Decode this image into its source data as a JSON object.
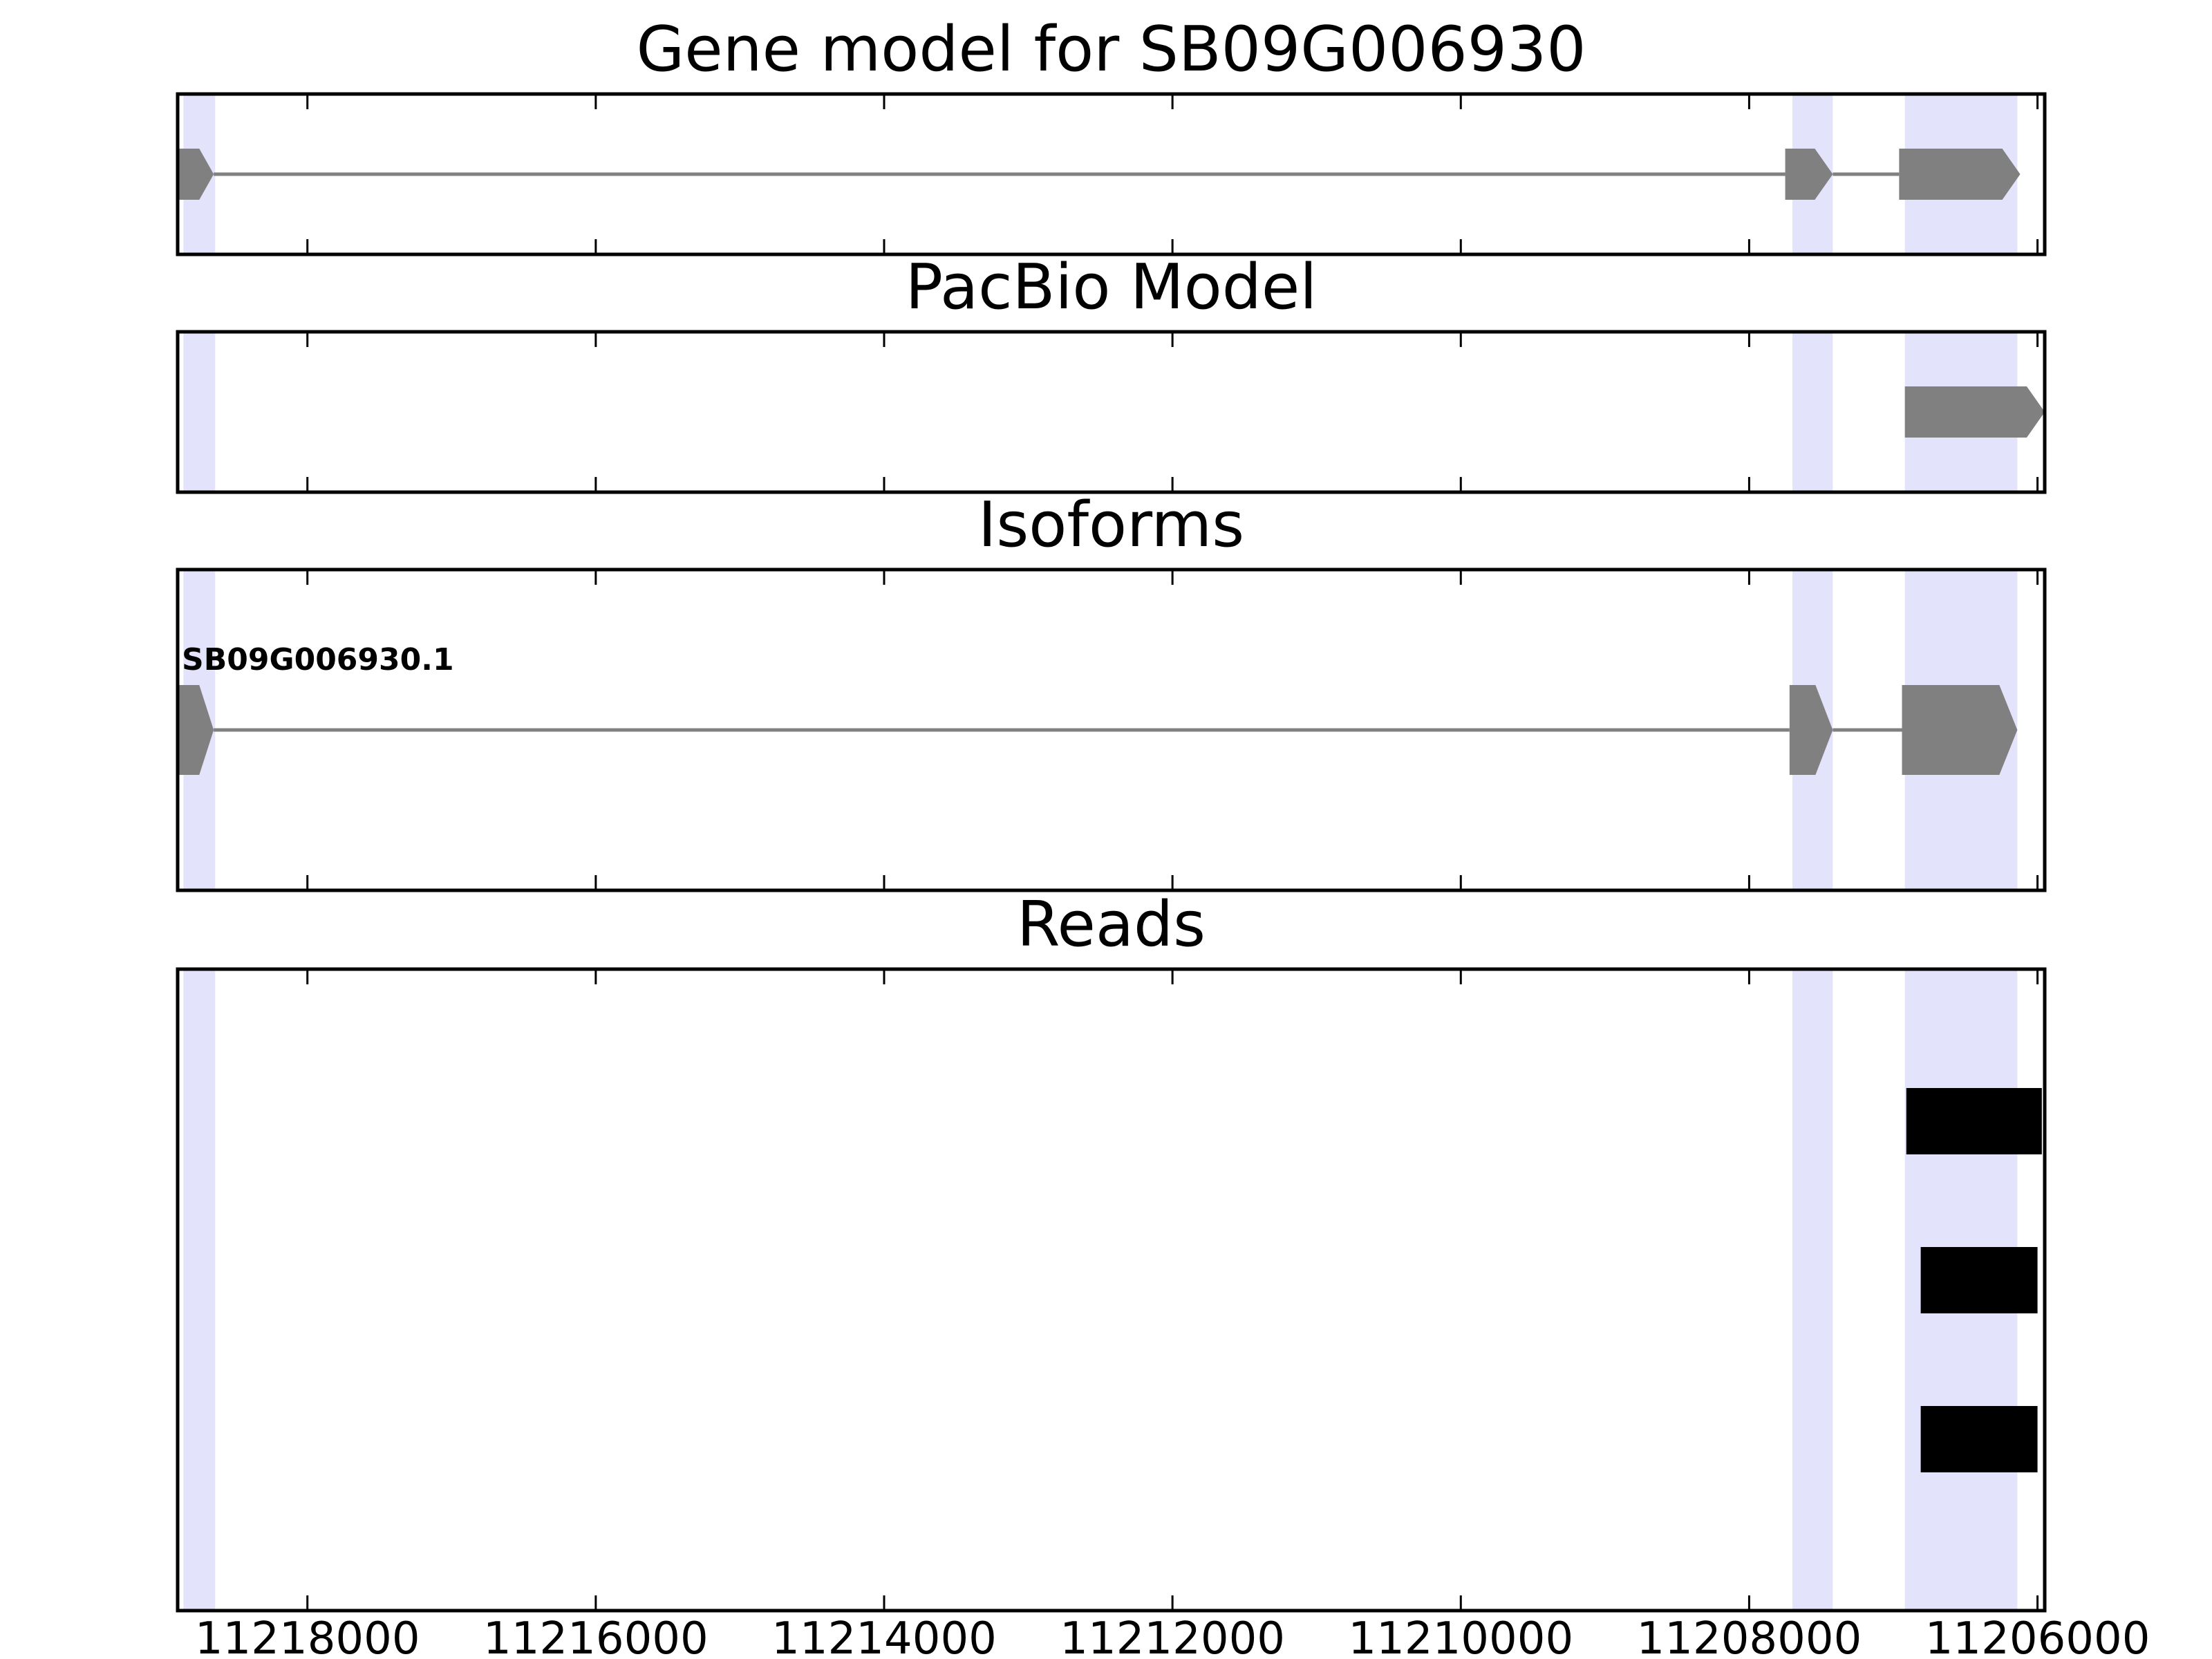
{
  "figure": {
    "background": "#ffffff",
    "highlight_color": "#e3e4fb",
    "exon_color": "#808080",
    "read_color": "#000000"
  },
  "chart_data": {
    "type": "gene-track",
    "x_reversed": true,
    "xlim": [
      11218900,
      11205950
    ],
    "xticks": [
      11218000,
      11216000,
      11214000,
      11212000,
      11210000,
      11208000,
      11206000
    ],
    "xtick_labels": [
      "11218000",
      "11216000",
      "11214000",
      "11212000",
      "11210000",
      "11208000",
      "11206000"
    ],
    "highlight_regions": [
      [
        11218860,
        11218640
      ],
      [
        11207700,
        11207420
      ],
      [
        11206920,
        11206140
      ]
    ],
    "panels": [
      {
        "id": "gene-model",
        "title": "Gene model for SB09G006930",
        "kind": "model",
        "features": [
          {
            "strand": "-",
            "exons": [
              [
                11218900,
                11218650
              ],
              [
                11207750,
                11207420
              ],
              [
                11206960,
                11206120
              ]
            ],
            "label": ""
          }
        ]
      },
      {
        "id": "pacbio-model",
        "title": "PacBio Model",
        "kind": "model",
        "features": [
          {
            "strand": "-",
            "exons": [
              [
                11206920,
                11205950
              ]
            ],
            "label": ""
          }
        ]
      },
      {
        "id": "isoforms",
        "title": "Isoforms",
        "kind": "model",
        "features": [
          {
            "strand": "-",
            "exons": [
              [
                11218900,
                11218650
              ],
              [
                11207720,
                11207420
              ],
              [
                11206940,
                11206140
              ]
            ],
            "label": "SB09G006930.1"
          }
        ]
      },
      {
        "id": "reads",
        "title": "Reads",
        "kind": "reads",
        "features": [
          {
            "start": 11206910,
            "end": 11205970
          },
          {
            "start": 11206810,
            "end": 11206000
          },
          {
            "start": 11206810,
            "end": 11206000
          }
        ]
      }
    ]
  }
}
